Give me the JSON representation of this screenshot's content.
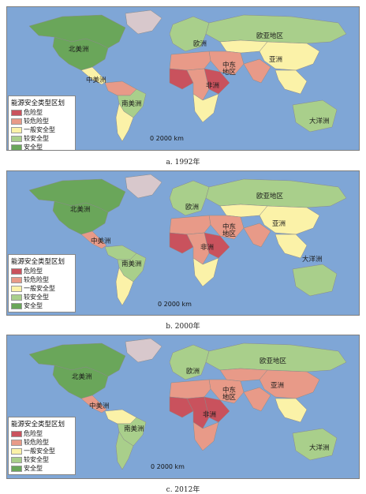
{
  "palette": {
    "ocean": "#7fa6d6",
    "danger": "#c9525d",
    "relatively_danger": "#e89a88",
    "general": "#fbf2a8",
    "relatively_safe": "#a9cf8b",
    "safe": "#6aa65a",
    "greenland": "#d8c8cc",
    "nodata": "#cfcfcf"
  },
  "legend": {
    "title": "能源安全类型区划",
    "items": [
      {
        "label": "危险型",
        "color_key": "danger"
      },
      {
        "label": "较危险型",
        "color_key": "relatively_danger"
      },
      {
        "label": "一般安全型",
        "color_key": "general"
      },
      {
        "label": "较安全型",
        "color_key": "relatively_safe"
      },
      {
        "label": "安全型",
        "color_key": "safe"
      }
    ]
  },
  "region_labels": {
    "north_america": "北美洲",
    "central_america": "中美洲",
    "south_america": "南美洲",
    "europe": "欧洲",
    "eurasia": "欧亚地区",
    "asia": "亚洲",
    "middle_east": "中东\n地区",
    "africa": "非洲",
    "oceania": "大洋洲"
  },
  "scale_label": "0   2000 km",
  "panels": [
    {
      "caption": "a. 1992年",
      "regions": {
        "north_america": "safe",
        "usa": "safe",
        "central_america": "general",
        "south_america_n": "relatively_danger",
        "brazil": "relatively_safe",
        "south_america_s": "general",
        "europe": "relatively_safe",
        "russia": "relatively_safe",
        "central_asia": "general",
        "china": "general",
        "india": "relatively_danger",
        "se_asia": "general",
        "middle_east": "relatively_danger",
        "n_africa": "relatively_danger",
        "w_africa": "danger",
        "c_africa": "relatively_danger",
        "e_africa": "danger",
        "s_africa": "general",
        "australia": "relatively_safe"
      }
    },
    {
      "caption": "b. 2000年",
      "regions": {
        "north_america": "safe",
        "usa": "safe",
        "central_america": "relatively_danger",
        "south_america_n": "relatively_safe",
        "brazil": "relatively_safe",
        "south_america_s": "general",
        "europe": "relatively_safe",
        "russia": "relatively_safe",
        "central_asia": "general",
        "china": "general",
        "india": "relatively_danger",
        "se_asia": "general",
        "middle_east": "relatively_danger",
        "n_africa": "relatively_danger",
        "w_africa": "danger",
        "c_africa": "relatively_danger",
        "e_africa": "danger",
        "s_africa": "general",
        "australia": "relatively_safe"
      }
    },
    {
      "caption": "c. 2012年",
      "regions": {
        "north_america": "safe",
        "usa": "safe",
        "central_america": "relatively_danger",
        "south_america_n": "general",
        "brazil": "relatively_safe",
        "south_america_s": "relatively_safe",
        "europe": "relatively_safe",
        "russia": "relatively_safe",
        "central_asia": "relatively_danger",
        "china": "relatively_danger",
        "india": "relatively_danger",
        "se_asia": "general",
        "middle_east": "relatively_danger",
        "n_africa": "relatively_danger",
        "w_africa": "danger",
        "c_africa": "danger",
        "e_africa": "danger",
        "s_africa": "relatively_danger",
        "australia": "relatively_safe"
      }
    }
  ]
}
